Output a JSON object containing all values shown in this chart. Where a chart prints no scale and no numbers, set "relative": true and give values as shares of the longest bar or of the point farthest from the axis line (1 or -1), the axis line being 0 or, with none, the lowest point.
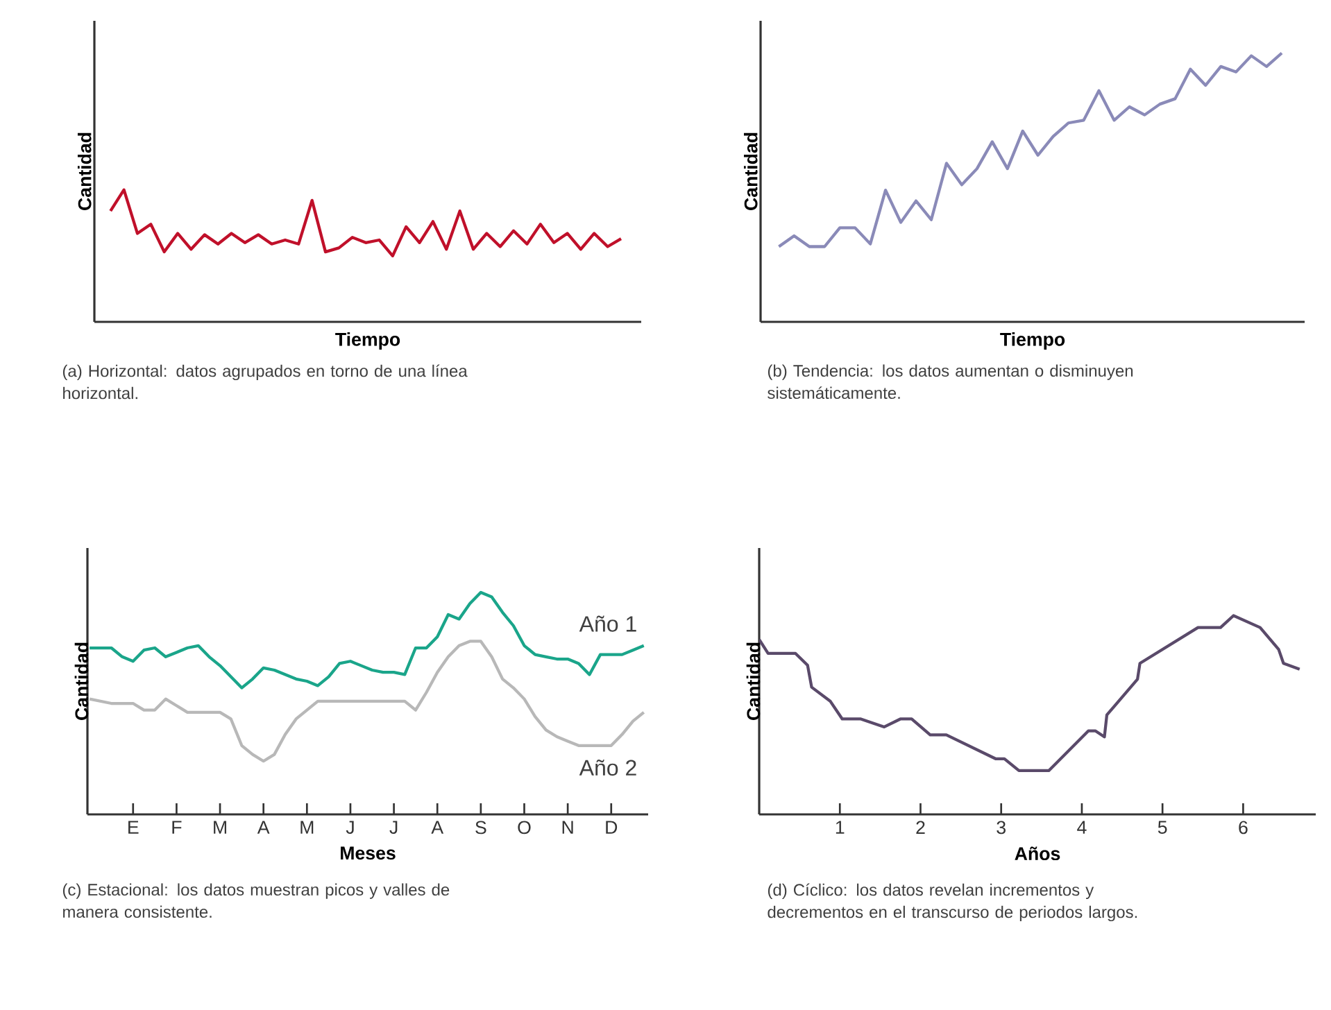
{
  "chart_data": [
    {
      "type": "line",
      "relative": true,
      "xlabel": "Tiempo",
      "ylabel": "Cantidad",
      "categories": [
        null,
        null,
        null,
        null,
        null,
        null,
        null,
        null,
        null,
        null,
        null,
        null,
        null,
        null,
        null,
        null,
        null,
        null,
        null,
        null,
        null,
        null,
        null,
        null,
        null,
        null,
        null,
        null,
        null,
        null,
        null,
        null,
        null,
        null,
        null,
        null,
        null,
        null,
        null
      ],
      "series": [
        {
          "color": "#c0102a",
          "values": [
            0.84,
            1,
            0.67,
            0.74,
            0.53,
            0.67,
            0.55,
            0.66,
            0.59,
            0.67,
            0.6,
            0.66,
            0.59,
            0.62,
            0.59,
            0.92,
            0.53,
            0.56,
            0.64,
            0.6,
            0.62,
            0.5,
            0.72,
            0.6,
            0.76,
            0.55,
            0.84,
            0.55,
            0.67,
            0.57,
            0.69,
            0.59,
            0.74,
            0.6,
            0.67,
            0.55,
            0.67,
            0.57,
            0.63
          ]
        }
      ],
      "annotations": [
        "(a) Horizontal: datos agrupados en torno de una línea horizontal."
      ]
    },
    {
      "type": "line",
      "relative": true,
      "xlabel": "Tiempo",
      "ylabel": "Cantidad",
      "categories": [
        null,
        null,
        null,
        null,
        null,
        null,
        null,
        null,
        null,
        null,
        null,
        null,
        null,
        null,
        null,
        null,
        null,
        null,
        null,
        null,
        null,
        null,
        null,
        null,
        null,
        null,
        null,
        null,
        null,
        null,
        null,
        null,
        null,
        null
      ],
      "series": [
        {
          "color": "#8a8ab8",
          "values": [
            0.28,
            0.32,
            0.28,
            0.28,
            0.35,
            0.35,
            0.29,
            0.49,
            0.37,
            0.45,
            0.38,
            0.59,
            0.51,
            0.57,
            0.67,
            0.57,
            0.71,
            0.62,
            0.69,
            0.74,
            0.75,
            0.86,
            0.75,
            0.8,
            0.77,
            0.81,
            0.83,
            0.94,
            0.88,
            0.95,
            0.93,
            0.99,
            0.95,
            1
          ]
        }
      ],
      "annotations": [
        "(b) Tendencia: los datos aumentan o disminuyen sistemáticamente."
      ]
    },
    {
      "type": "line",
      "relative": true,
      "xlabel": "Meses",
      "ylabel": "Cantidad",
      "categories": [
        null,
        null,
        null,
        null,
        "E",
        null,
        null,
        null,
        "F",
        null,
        null,
        null,
        "M",
        null,
        null,
        null,
        "A",
        null,
        null,
        null,
        "M",
        null,
        null,
        null,
        "J",
        null,
        null,
        null,
        "J",
        null,
        null,
        null,
        "A",
        null,
        null,
        null,
        "S",
        null,
        null,
        null,
        "O",
        null,
        null,
        null,
        "N",
        null,
        null,
        null,
        "D",
        null,
        null,
        null
      ],
      "series": [
        {
          "name": "Año 1",
          "color": "#1aa58a",
          "values": [
            0.75,
            0.75,
            0.75,
            0.71,
            0.69,
            0.74,
            0.75,
            0.71,
            0.73,
            0.75,
            0.76,
            0.71,
            0.67,
            0.62,
            0.57,
            0.61,
            0.66,
            0.65,
            0.63,
            0.61,
            0.6,
            0.58,
            0.62,
            0.68,
            0.69,
            0.67,
            0.65,
            0.64,
            0.64,
            0.63,
            0.75,
            0.75,
            0.8,
            0.9,
            0.88,
            0.95,
            1,
            0.98,
            0.91,
            0.85,
            0.76,
            0.72,
            0.71,
            0.7,
            0.7,
            0.68,
            0.63,
            0.72,
            0.72,
            0.72,
            0.74,
            0.76
          ]
        },
        {
          "name": "Año 2",
          "color": "#b8b8b8",
          "values": [
            0.52,
            0.51,
            0.5,
            0.5,
            0.5,
            0.47,
            0.47,
            0.52,
            0.49,
            0.46,
            0.46,
            0.46,
            0.46,
            0.43,
            0.31,
            0.27,
            0.24,
            0.27,
            0.36,
            0.43,
            0.47,
            0.51,
            0.51,
            0.51,
            0.51,
            0.51,
            0.51,
            0.51,
            0.51,
            0.51,
            0.47,
            0.55,
            0.64,
            0.71,
            0.76,
            0.78,
            0.78,
            0.71,
            0.61,
            0.57,
            0.52,
            0.44,
            0.38,
            0.35,
            0.33,
            0.31,
            0.31,
            0.31,
            0.31,
            0.36,
            0.42,
            0.46
          ]
        }
      ],
      "annotations": [
        "(c) Estacional: los datos muestran picos y valles de manera consistente."
      ]
    },
    {
      "type": "line",
      "relative": true,
      "xlabel": "Años",
      "ylabel": "Cantidad",
      "xlim": [
        0,
        6.9
      ],
      "xticks": [
        1,
        2,
        3,
        4,
        5,
        6
      ],
      "series": [
        {
          "color": "#5a4a6a",
          "x": [
            0.0,
            0.11,
            0.45,
            0.6,
            0.65,
            0.88,
            1.03,
            1.26,
            1.55,
            1.75,
            1.89,
            2.12,
            2.32,
            2.93,
            3.04,
            3.22,
            3.59,
            4.08,
            4.17,
            4.28,
            4.31,
            4.69,
            4.72,
            5.44,
            5.72,
            5.88,
            6.21,
            6.44,
            6.5,
            6.7
          ],
          "values": [
            0.88,
            0.81,
            0.81,
            0.75,
            0.64,
            0.57,
            0.48,
            0.48,
            0.44,
            0.48,
            0.48,
            0.4,
            0.4,
            0.28,
            0.28,
            0.22,
            0.22,
            0.42,
            0.42,
            0.39,
            0.5,
            0.68,
            0.76,
            0.94,
            0.94,
            1,
            0.94,
            0.83,
            0.76,
            0.73
          ]
        }
      ],
      "annotations": [
        "(d) Cíclico: los datos revelan incrementos y decrementos en el transcurso de periodos largos."
      ]
    }
  ]
}
